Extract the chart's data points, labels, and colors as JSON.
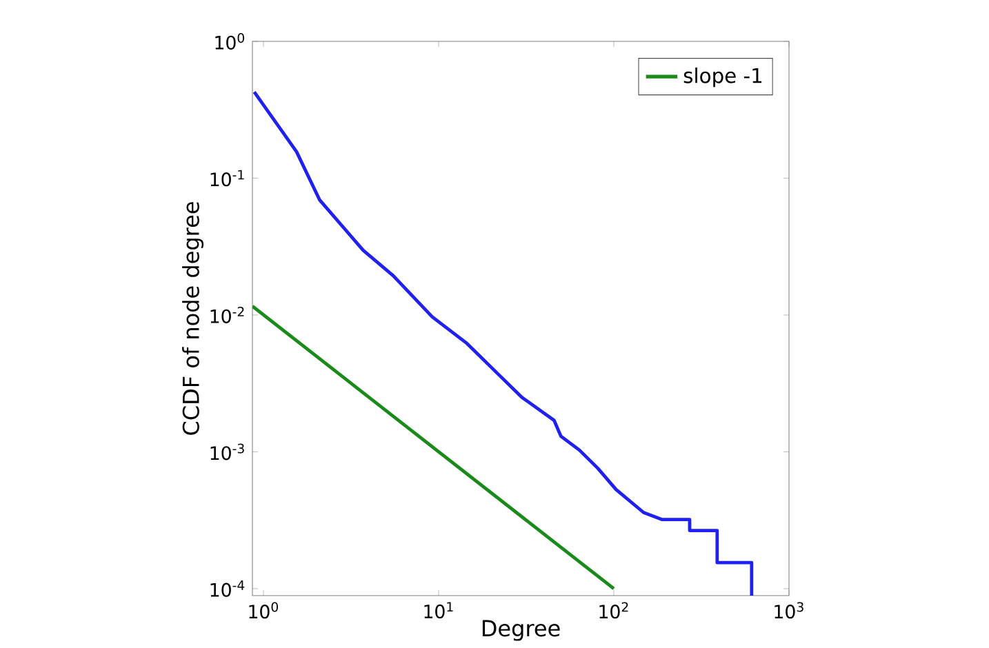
{
  "chart_data": {
    "type": "line",
    "xlabel": "Degree",
    "ylabel": "CCDF of node degree",
    "log": "xy",
    "grid": false,
    "legend": "top right",
    "xlim": [
      0.865,
      1000
    ],
    "ylim": [
      8.9e-05,
      1
    ],
    "xticks": [
      {
        "value": 1,
        "label": "10$^{0}$"
      },
      {
        "value": 10,
        "label": "10$^{1}$"
      },
      {
        "value": 100,
        "label": "10$^{2}$"
      },
      {
        "value": 1000,
        "label": "10$^{3}$"
      }
    ],
    "yticks": [
      {
        "value": 0.0001,
        "label": "10$^{-4}$"
      },
      {
        "value": 0.001,
        "label": "10$^{-3}$"
      },
      {
        "value": 0.01,
        "label": "10$^{-2}$"
      },
      {
        "value": 0.1,
        "label": "10$^{-1}$"
      },
      {
        "value": 1,
        "label": "10$^{0}$"
      }
    ],
    "series": [
      {
        "color": "#2020f0",
        "x": [
          0.886,
          1.545,
          2.09,
          3.71,
          5.5,
          9.19,
          14.5,
          21.4,
          29.9,
          45.6,
          49.9,
          63.6,
          80.9,
          103,
          148,
          189,
          271,
          271,
          389,
          389,
          612,
          612
        ],
        "values": [
          0.427,
          0.156,
          0.0695,
          0.0297,
          0.0194,
          0.0097,
          0.0062,
          0.0038,
          0.0025,
          0.0017,
          0.0013,
          0.00103,
          0.00076,
          0.00053,
          0.00036,
          0.00032,
          0.00032,
          0.000266,
          0.000266,
          0.000155,
          0.000155,
          8.9e-05
        ]
      },
      {
        "name": "slope -1",
        "color": "#1a8a1a",
        "x": [
          0.865,
          100
        ],
        "values": [
          0.0116,
          0.0001
        ]
      }
    ]
  }
}
